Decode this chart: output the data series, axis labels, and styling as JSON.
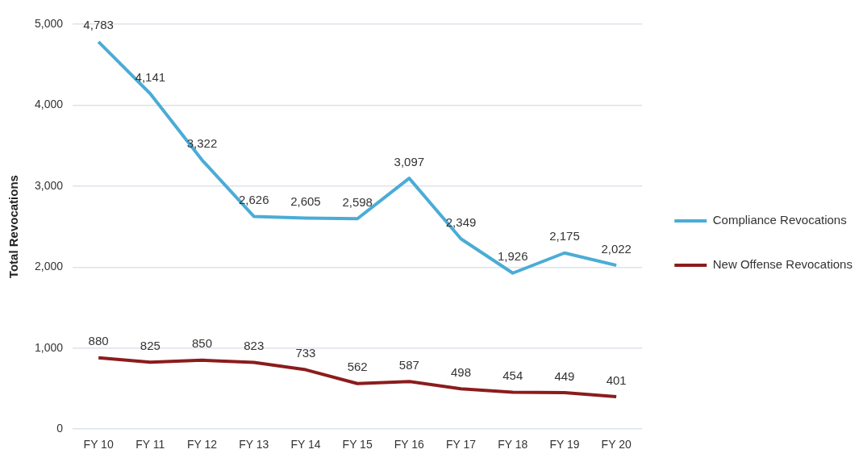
{
  "chart_data": {
    "type": "line",
    "ylabel": "Total Revocations",
    "categories": [
      "FY 10",
      "FY 11",
      "FY 12",
      "FY 13",
      "FY 14",
      "FY 15",
      "FY 16",
      "FY 17",
      "FY 18",
      "FY 19",
      "FY 20"
    ],
    "series": [
      {
        "name": "Compliance Revocations",
        "color": "#4bacd6",
        "values": [
          4783,
          4141,
          3322,
          2626,
          2605,
          2598,
          3097,
          2349,
          1926,
          2175,
          2022
        ],
        "value_labels": [
          "4,783",
          "4,141",
          "3,322",
          "2,626",
          "2,605",
          "2,598",
          "3,097",
          "2,349",
          "1,926",
          "2,175",
          "2,022"
        ]
      },
      {
        "name": "New Offense Revocations",
        "color": "#8b1c1c",
        "values": [
          880,
          825,
          850,
          823,
          733,
          562,
          587,
          498,
          454,
          449,
          401
        ],
        "value_labels": [
          "880",
          "825",
          "850",
          "823",
          "733",
          "562",
          "587",
          "498",
          "454",
          "449",
          "401"
        ]
      }
    ],
    "ylim": [
      0,
      5000
    ],
    "yticks": [
      {
        "value": 0,
        "label": "0"
      },
      {
        "value": 1000,
        "label": "1,000"
      },
      {
        "value": 2000,
        "label": "2,000"
      },
      {
        "value": 3000,
        "label": "3,000"
      },
      {
        "value": 4000,
        "label": "4,000"
      },
      {
        "value": 5000,
        "label": "5,000"
      }
    ],
    "grid": "y",
    "legend": "right",
    "marker": "none",
    "line_style": "solid"
  }
}
